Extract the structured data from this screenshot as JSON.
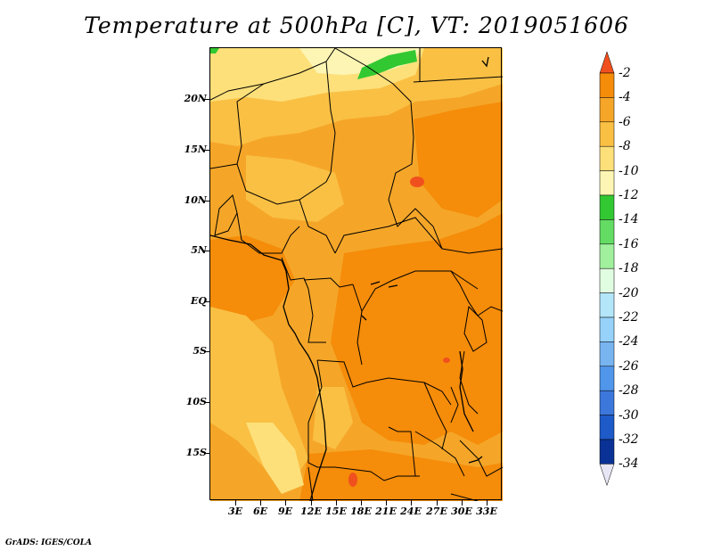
{
  "title": "Temperature at 500hPa [C], VT: 2019051606",
  "map": {
    "lat_labels": [
      "20N",
      "15N",
      "10N",
      "5N",
      "EQ",
      "5S",
      "10S",
      "15S"
    ],
    "lon_labels": [
      "3E",
      "6E",
      "9E",
      "12E",
      "15E",
      "18E",
      "21E",
      "24E",
      "27E",
      "30E",
      "33E"
    ]
  },
  "legend": {
    "labels": [
      "-2",
      "-4",
      "-6",
      "-8",
      "-10",
      "-12",
      "-14",
      "-16",
      "-18",
      "-20",
      "-22",
      "-24",
      "-26",
      "-28",
      "-30",
      "-32",
      "-34"
    ],
    "colors": [
      "#f0501e",
      "#f58c0a",
      "#f5a628",
      "#fac044",
      "#fde07a",
      "#fdf5b4",
      "#32c832",
      "#64dc64",
      "#a0f09e",
      "#e1fde1",
      "#b4e6fa",
      "#96d2fa",
      "#78b4f0",
      "#5096eb",
      "#3c78dc",
      "#1e5ac8",
      "#0a3296",
      "#000064"
    ],
    "over_color": "#f0501e",
    "under_color": "#e6e6f5"
  },
  "credit": "GrADS: IGES/COLA"
}
